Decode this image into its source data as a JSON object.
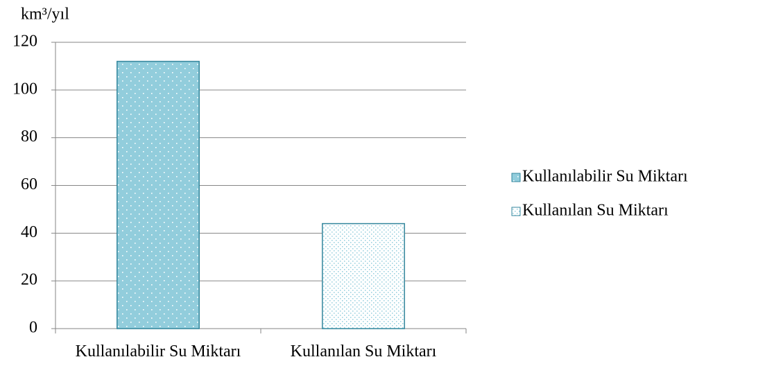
{
  "chart_data": {
    "type": "bar",
    "y_axis_label": "km³/yıl",
    "categories": [
      "Kullanılabilir Su Miktarı",
      "Kullanılan Su Miktarı"
    ],
    "series": [
      {
        "name": "Kullanılabilir Su Miktarı",
        "color": "#92cddc",
        "values": [
          112,
          null
        ]
      },
      {
        "name": "Kullanılan Su Miktarı",
        "color": "#ffffff",
        "values": [
          null,
          44
        ]
      }
    ],
    "ylim": [
      0,
      120
    ],
    "yticks": [
      0,
      20,
      40,
      60,
      80,
      100,
      120
    ],
    "grid": true,
    "legend": "right"
  }
}
